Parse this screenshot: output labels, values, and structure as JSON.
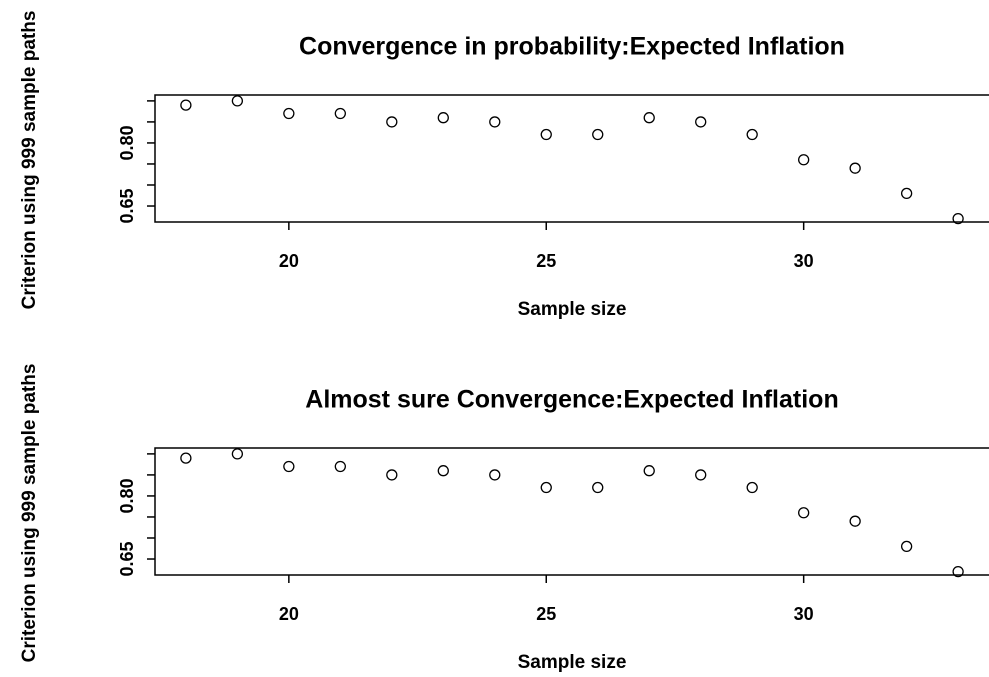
{
  "chart_data": [
    {
      "type": "scatter",
      "title": "Convergence in probability:Expected Inflation",
      "xlabel": "Sample size",
      "ylabel": "Criterion using 999 sample paths",
      "x": [
        18,
        19,
        20,
        21,
        22,
        23,
        24,
        25,
        26,
        27,
        28,
        29,
        30,
        31,
        32,
        33
      ],
      "values": [
        0.89,
        0.9,
        0.87,
        0.87,
        0.85,
        0.86,
        0.85,
        0.82,
        0.82,
        0.86,
        0.85,
        0.82,
        0.76,
        0.74,
        0.68,
        0.62
      ],
      "color": "#000000",
      "xlim": [
        17.4,
        33.6
      ],
      "xticks": [
        20,
        25,
        30
      ],
      "ylim": [
        0.612,
        0.914
      ],
      "yticks": [
        0.65,
        {
          "value": 0.8,
          "label": "0.80"
        }
      ],
      "yminorticks": [
        0.7,
        0.75,
        0.85,
        0.9
      ]
    },
    {
      "type": "scatter",
      "title": "Almost sure Convergence:Expected Inflation",
      "xlabel": "Sample size",
      "ylabel": "Criterion using 999 sample paths",
      "x": [
        18,
        19,
        20,
        21,
        22,
        23,
        24,
        25,
        26,
        27,
        28,
        29,
        30,
        31,
        32,
        33
      ],
      "values": [
        0.89,
        0.9,
        0.87,
        0.87,
        0.85,
        0.86,
        0.85,
        0.82,
        0.82,
        0.86,
        0.85,
        0.82,
        0.76,
        0.74,
        0.68,
        0.62
      ],
      "color": "#000000",
      "xlim": [
        17.4,
        33.6
      ],
      "xticks": [
        20,
        25,
        30
      ],
      "ylim": [
        0.612,
        0.914
      ],
      "yticks": [
        0.65,
        {
          "value": 0.8,
          "label": "0.80"
        }
      ],
      "yminorticks": [
        0.7,
        0.75,
        0.85,
        0.9
      ]
    }
  ]
}
